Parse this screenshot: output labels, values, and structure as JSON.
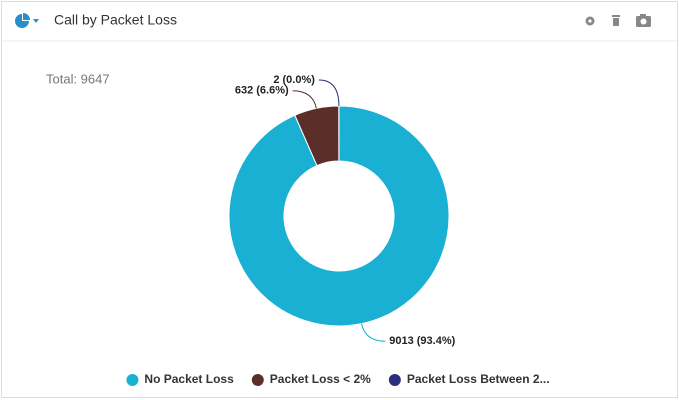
{
  "chart_data": {
    "type": "donut",
    "title": "Call by Packet Loss",
    "total": "Total: 9647",
    "categories": [
      "No Packet Loss",
      "Packet Loss < 2%",
      "Packet Loss Between 2..."
    ],
    "values": [
      9013,
      632,
      2
    ],
    "value_labels": [
      "9013 (93.4%)",
      "632 (6.6%)",
      "2 (0.0%)"
    ],
    "colors": [
      "#1ab0d3",
      "#5c2e2a",
      "#2b2e7a"
    ]
  }
}
